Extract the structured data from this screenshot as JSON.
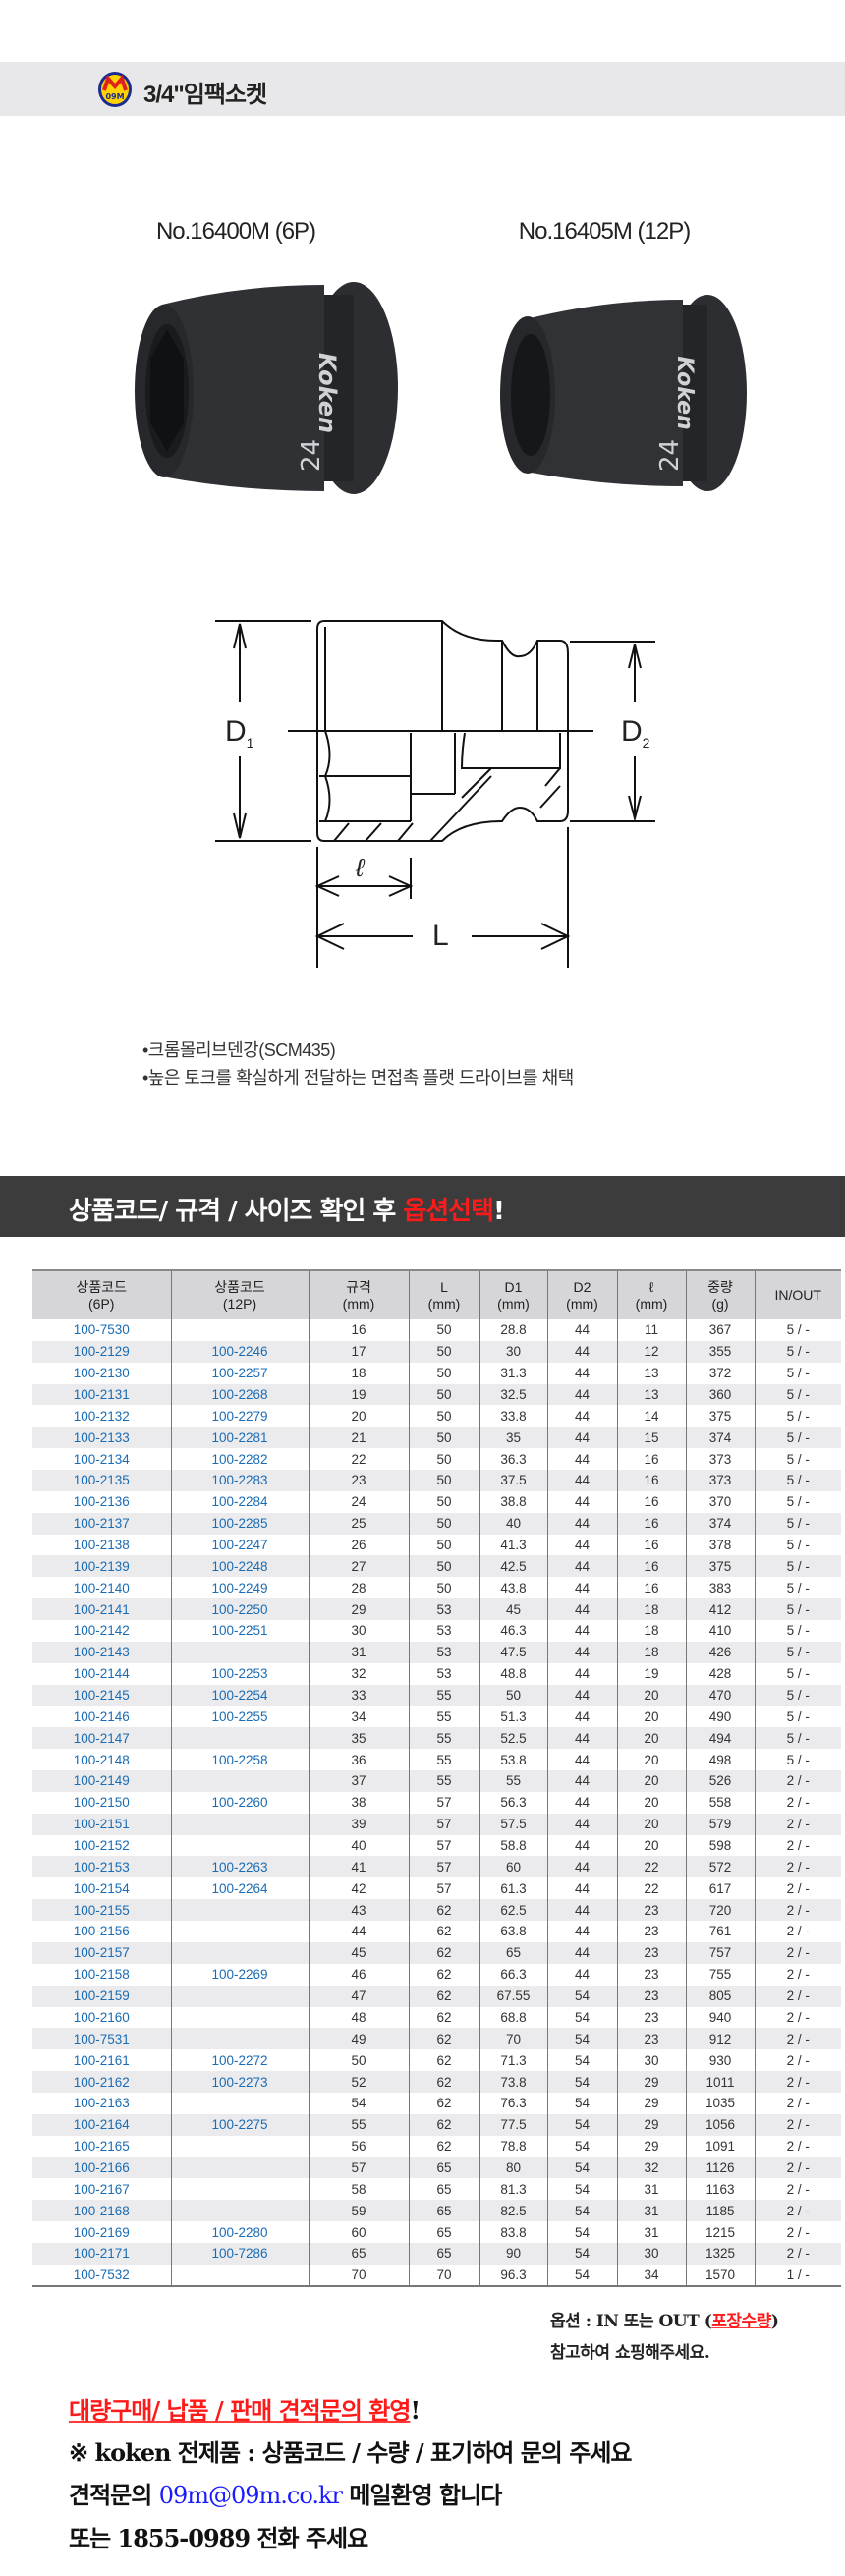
{
  "header": {
    "title": "3/4\"임팩소켓",
    "logo_text": "09M"
  },
  "products": [
    {
      "label": "No.16400M (6P)",
      "brand": "Koken",
      "size_mark": "24"
    },
    {
      "label": "No.16405M (12P)",
      "brand": "Koken",
      "size_mark": "24"
    }
  ],
  "diagram": {
    "d1": "D",
    "d1_sub": "1",
    "d2": "D",
    "d2_sub": "2",
    "l_small": "ℓ",
    "l_big": "L"
  },
  "features": [
    "•크롬몰리브덴강(SCM435)",
    "•높은 토크를 확실하게 전달하는 면접촉 플랫 드라이브를 채택"
  ],
  "banner": {
    "text": "상품코드/ 규격 / 사이즈 확인 후 ",
    "highlight": "옵션선택",
    "end": "!",
    "highlight_color": "#ff1a1a"
  },
  "table": {
    "headers": [
      [
        "상품코드",
        "(6P)"
      ],
      [
        "상품코드",
        "(12P)"
      ],
      [
        "규격",
        "(mm)"
      ],
      [
        "L",
        "(mm)"
      ],
      [
        "D1",
        "(mm)"
      ],
      [
        "D2",
        "(mm)"
      ],
      [
        "ℓ",
        "(mm)"
      ],
      [
        "중량",
        "(g)"
      ],
      [
        "IN/OUT",
        ""
      ]
    ],
    "code_color": "#1a6cb4",
    "rows": [
      [
        "100-7530",
        "",
        "16",
        "50",
        "28.8",
        "44",
        "11",
        "367",
        "5 / -"
      ],
      [
        "100-2129",
        "100-2246",
        "17",
        "50",
        "30",
        "44",
        "12",
        "355",
        "5 / -"
      ],
      [
        "100-2130",
        "100-2257",
        "18",
        "50",
        "31.3",
        "44",
        "13",
        "372",
        "5 / -"
      ],
      [
        "100-2131",
        "100-2268",
        "19",
        "50",
        "32.5",
        "44",
        "13",
        "360",
        "5 / -"
      ],
      [
        "100-2132",
        "100-2279",
        "20",
        "50",
        "33.8",
        "44",
        "14",
        "375",
        "5 / -"
      ],
      [
        "100-2133",
        "100-2281",
        "21",
        "50",
        "35",
        "44",
        "15",
        "374",
        "5 / -"
      ],
      [
        "100-2134",
        "100-2282",
        "22",
        "50",
        "36.3",
        "44",
        "16",
        "373",
        "5 / -"
      ],
      [
        "100-2135",
        "100-2283",
        "23",
        "50",
        "37.5",
        "44",
        "16",
        "373",
        "5 / -"
      ],
      [
        "100-2136",
        "100-2284",
        "24",
        "50",
        "38.8",
        "44",
        "16",
        "370",
        "5 / -"
      ],
      [
        "100-2137",
        "100-2285",
        "25",
        "50",
        "40",
        "44",
        "16",
        "374",
        "5 / -"
      ],
      [
        "100-2138",
        "100-2247",
        "26",
        "50",
        "41.3",
        "44",
        "16",
        "378",
        "5 / -"
      ],
      [
        "100-2139",
        "100-2248",
        "27",
        "50",
        "42.5",
        "44",
        "16",
        "375",
        "5 / -"
      ],
      [
        "100-2140",
        "100-2249",
        "28",
        "50",
        "43.8",
        "44",
        "16",
        "383",
        "5 / -"
      ],
      [
        "100-2141",
        "100-2250",
        "29",
        "53",
        "45",
        "44",
        "18",
        "412",
        "5 / -"
      ],
      [
        "100-2142",
        "100-2251",
        "30",
        "53",
        "46.3",
        "44",
        "18",
        "410",
        "5 / -"
      ],
      [
        "100-2143",
        "",
        "31",
        "53",
        "47.5",
        "44",
        "18",
        "426",
        "5 / -"
      ],
      [
        "100-2144",
        "100-2253",
        "32",
        "53",
        "48.8",
        "44",
        "19",
        "428",
        "5 / -"
      ],
      [
        "100-2145",
        "100-2254",
        "33",
        "55",
        "50",
        "44",
        "20",
        "470",
        "5 / -"
      ],
      [
        "100-2146",
        "100-2255",
        "34",
        "55",
        "51.3",
        "44",
        "20",
        "490",
        "5 / -"
      ],
      [
        "100-2147",
        "",
        "35",
        "55",
        "52.5",
        "44",
        "20",
        "494",
        "5 / -"
      ],
      [
        "100-2148",
        "100-2258",
        "36",
        "55",
        "53.8",
        "44",
        "20",
        "498",
        "5 / -"
      ],
      [
        "100-2149",
        "",
        "37",
        "55",
        "55",
        "44",
        "20",
        "526",
        "2 / -"
      ],
      [
        "100-2150",
        "100-2260",
        "38",
        "57",
        "56.3",
        "44",
        "20",
        "558",
        "2 / -"
      ],
      [
        "100-2151",
        "",
        "39",
        "57",
        "57.5",
        "44",
        "20",
        "579",
        "2 / -"
      ],
      [
        "100-2152",
        "",
        "40",
        "57",
        "58.8",
        "44",
        "20",
        "598",
        "2 / -"
      ],
      [
        "100-2153",
        "100-2263",
        "41",
        "57",
        "60",
        "44",
        "22",
        "572",
        "2 / -"
      ],
      [
        "100-2154",
        "100-2264",
        "42",
        "57",
        "61.3",
        "44",
        "22",
        "617",
        "2 / -"
      ],
      [
        "100-2155",
        "",
        "43",
        "62",
        "62.5",
        "44",
        "23",
        "720",
        "2 / -"
      ],
      [
        "100-2156",
        "",
        "44",
        "62",
        "63.8",
        "44",
        "23",
        "761",
        "2 / -"
      ],
      [
        "100-2157",
        "",
        "45",
        "62",
        "65",
        "44",
        "23",
        "757",
        "2 / -"
      ],
      [
        "100-2158",
        "100-2269",
        "46",
        "62",
        "66.3",
        "44",
        "23",
        "755",
        "2 / -"
      ],
      [
        "100-2159",
        "",
        "47",
        "62",
        "67.55",
        "54",
        "23",
        "805",
        "2 / -"
      ],
      [
        "100-2160",
        "",
        "48",
        "62",
        "68.8",
        "54",
        "23",
        "940",
        "2 / -"
      ],
      [
        "100-7531",
        "",
        "49",
        "62",
        "70",
        "54",
        "23",
        "912",
        "2 / -"
      ],
      [
        "100-2161",
        "100-2272",
        "50",
        "62",
        "71.3",
        "54",
        "30",
        "930",
        "2 / -"
      ],
      [
        "100-2162",
        "100-2273",
        "52",
        "62",
        "73.8",
        "54",
        "29",
        "1011",
        "2 / -"
      ],
      [
        "100-2163",
        "",
        "54",
        "62",
        "76.3",
        "54",
        "29",
        "1035",
        "2 / -"
      ],
      [
        "100-2164",
        "100-2275",
        "55",
        "62",
        "77.5",
        "54",
        "29",
        "1056",
        "2 / -"
      ],
      [
        "100-2165",
        "",
        "56",
        "62",
        "78.8",
        "54",
        "29",
        "1091",
        "2 / -"
      ],
      [
        "100-2166",
        "",
        "57",
        "65",
        "80",
        "54",
        "32",
        "1126",
        "2 / -"
      ],
      [
        "100-2167",
        "",
        "58",
        "65",
        "81.3",
        "54",
        "31",
        "1163",
        "2 / -"
      ],
      [
        "100-2168",
        "",
        "59",
        "65",
        "82.5",
        "54",
        "31",
        "1185",
        "2 / -"
      ],
      [
        "100-2169",
        "100-2280",
        "60",
        "65",
        "83.8",
        "54",
        "31",
        "1215",
        "2 / -"
      ],
      [
        "100-2171",
        "100-7286",
        "65",
        "65",
        "90",
        "54",
        "30",
        "1325",
        "2 / -"
      ],
      [
        "100-7532",
        "",
        "70",
        "70",
        "96.3",
        "54",
        "34",
        "1570",
        "1 / -"
      ]
    ]
  },
  "note": {
    "line1_pre": "옵션 : IN 또는 OUT (",
    "line1_red": "포장수량",
    "line1_post": ")",
    "line2": "참고하여 쇼핑해주세요."
  },
  "contact": {
    "headline": "대량구매/ 납품 / 판매 견적문의 환영",
    "headline_end": "!",
    "line1": "※ koken 전제품 : 상품코드 / 수량 / 표기하여 문의 주세요",
    "line2_pre": "견적문의 ",
    "email": "09m@09m.co.kr",
    "line2_post": " 메일환영 합니다",
    "line3": "또는 1855-0989 전화 주세요"
  }
}
